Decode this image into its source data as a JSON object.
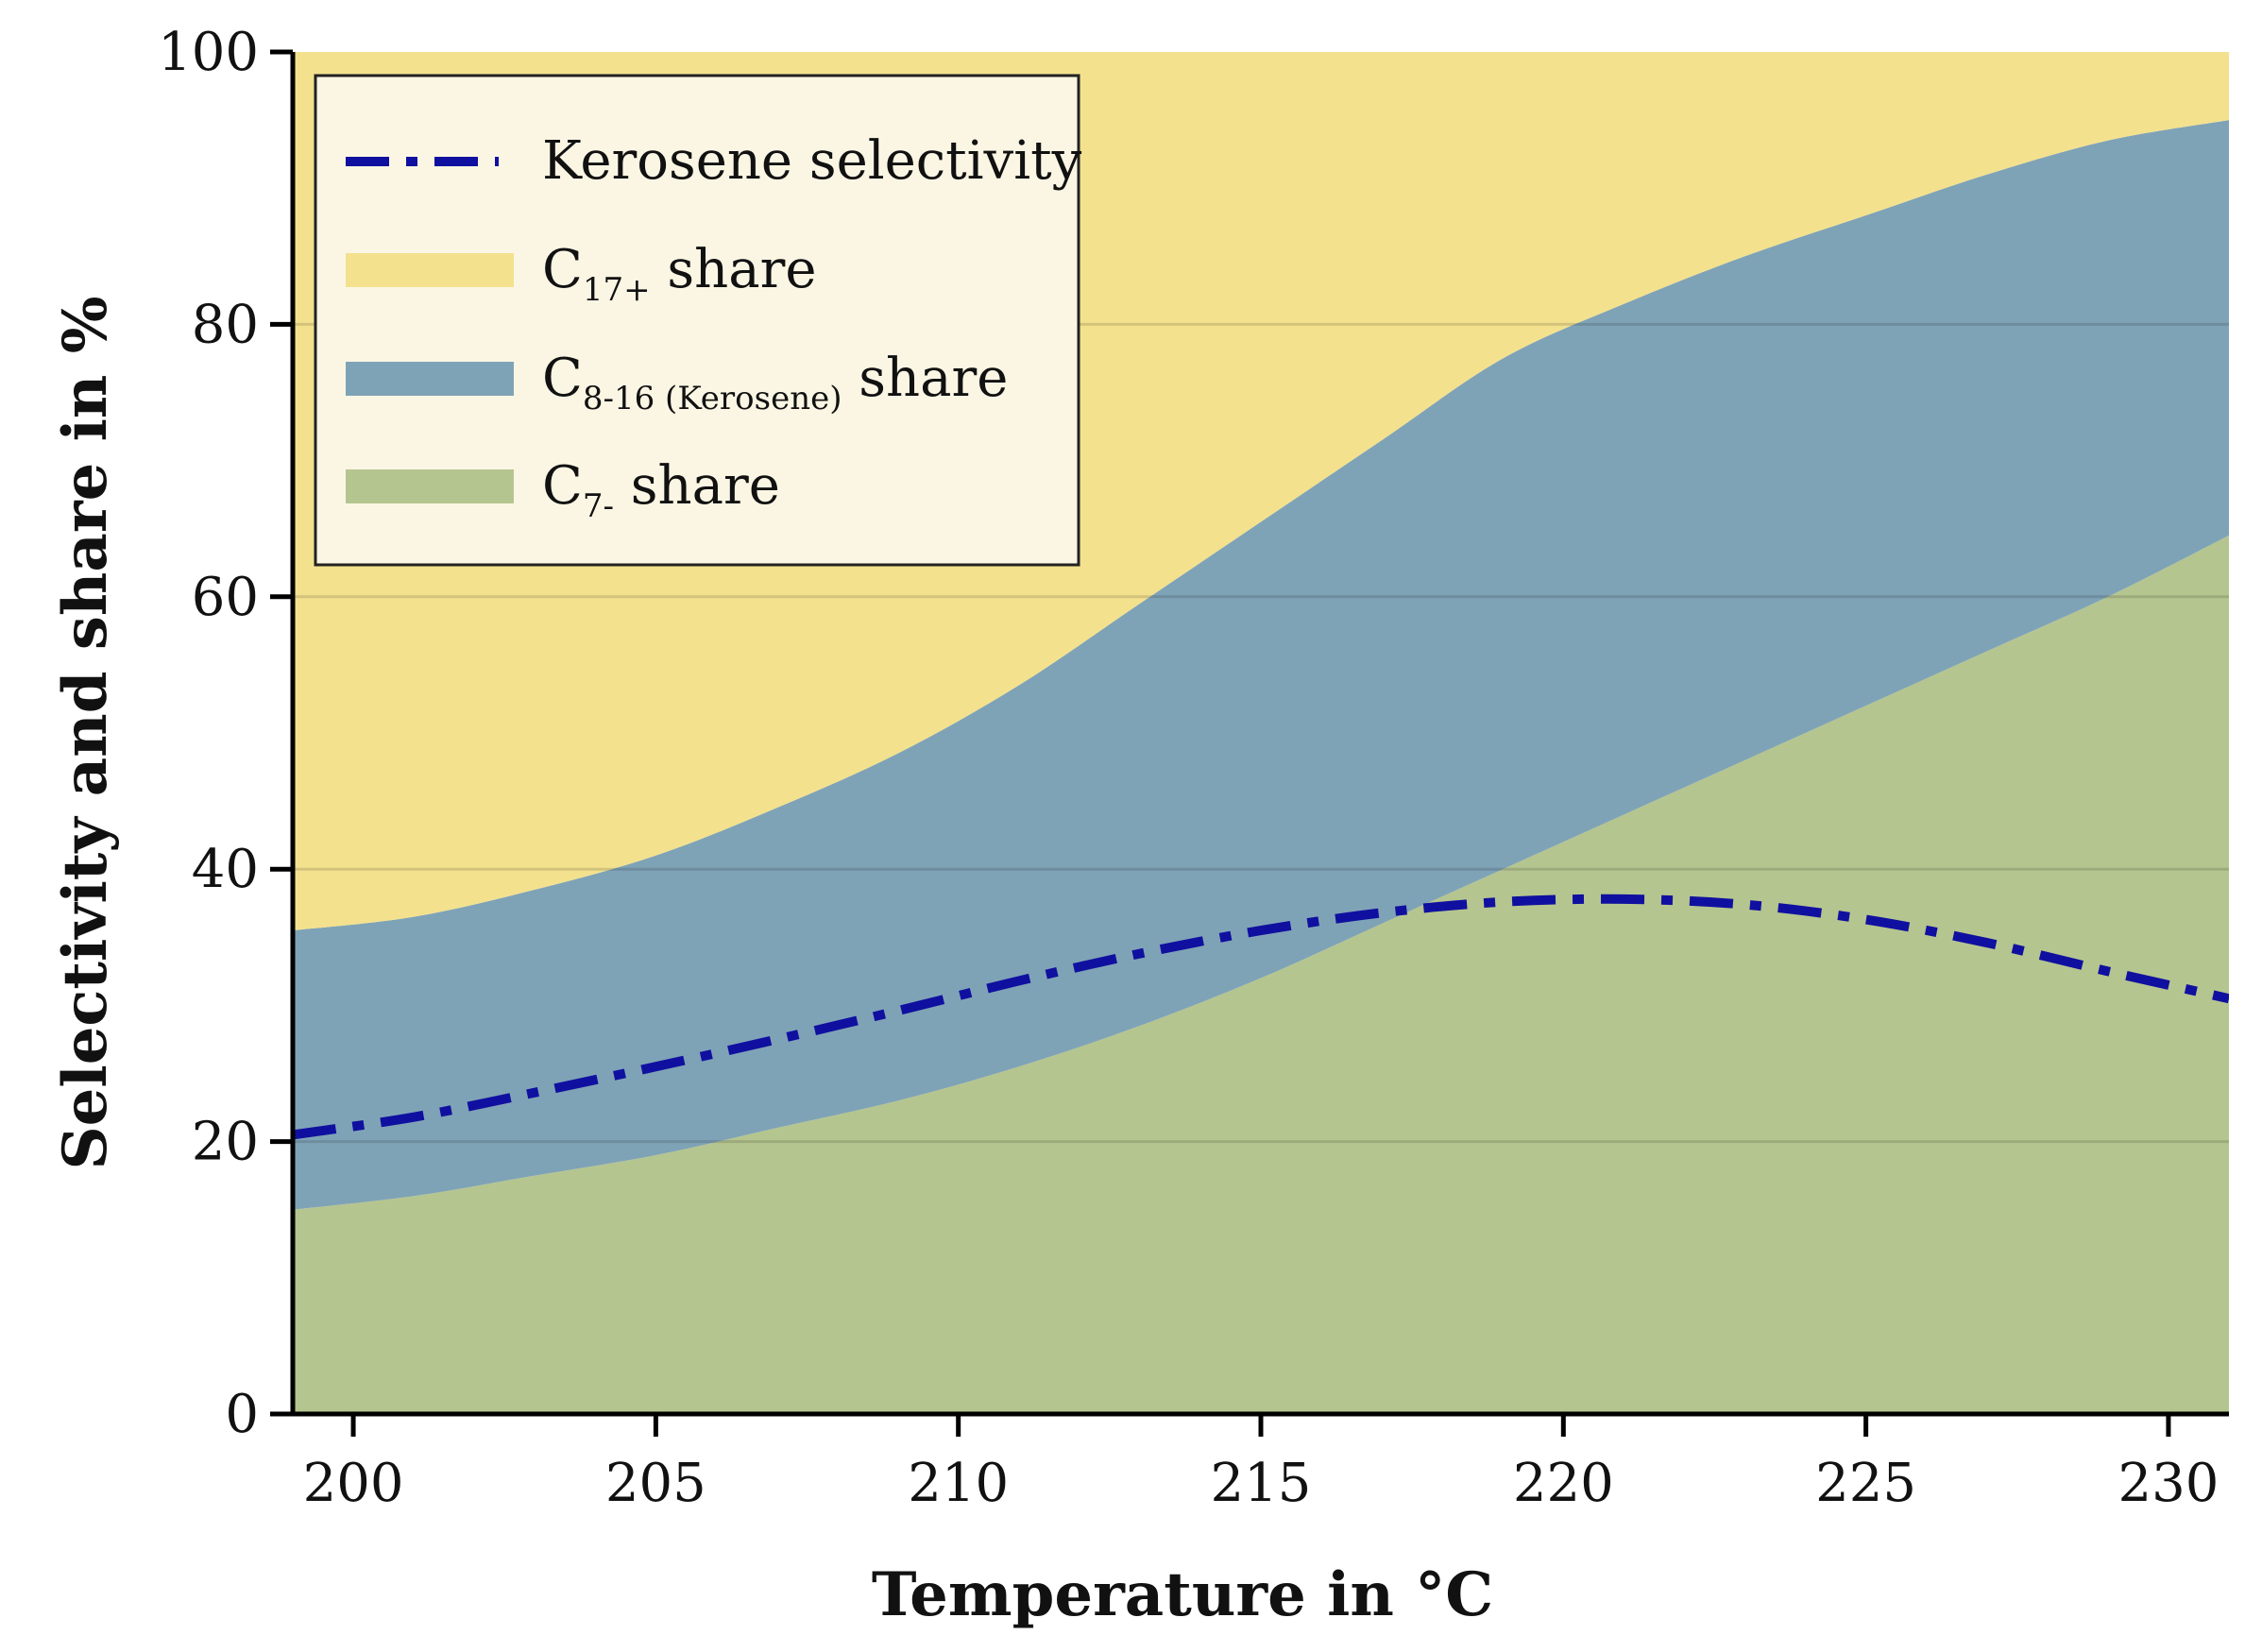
{
  "chart_data": {
    "type": "area",
    "title": "",
    "xlabel": "Temperature in °C",
    "ylabel": "Selectivity and share in %",
    "xlim": [
      199,
      231
    ],
    "ylim": [
      0,
      100
    ],
    "xticks": [
      200,
      205,
      210,
      215,
      220,
      225,
      230
    ],
    "yticks": [
      0,
      20,
      40,
      60,
      80,
      100
    ],
    "grid": "horizontal",
    "legend_position": "top-left",
    "x": [
      199,
      201,
      203,
      205,
      207,
      209,
      211,
      213,
      215,
      217,
      219,
      221,
      223,
      225,
      227,
      229,
      231
    ],
    "stacked_areas": [
      {
        "name": "C7- share",
        "legend_main": "C",
        "legend_sub": "7-",
        "legend_suffix": " share",
        "color": "#b5c58f",
        "values": [
          15.0,
          16.0,
          17.5,
          19.0,
          21.0,
          23.0,
          25.5,
          28.5,
          32.0,
          36.0,
          40.0,
          44.0,
          48.0,
          52.0,
          56.0,
          60.0,
          64.5
        ]
      },
      {
        "name": "C8-16 (Kerosene) share",
        "legend_main": "C",
        "legend_sub": "8-16 (Kerosene)",
        "legend_suffix": " share",
        "color": "#7fa3b6",
        "values": [
          20.5,
          20.5,
          21.0,
          22.0,
          23.5,
          25.5,
          28.0,
          31.0,
          33.5,
          35.5,
          37.5,
          37.5,
          37.0,
          36.0,
          35.0,
          33.5,
          30.5
        ]
      },
      {
        "name": "C17+ share",
        "legend_main": "C",
        "legend_sub": "17+",
        "legend_suffix": " share",
        "color": "#f3e18e",
        "values": [
          64.5,
          63.5,
          61.5,
          59.0,
          55.5,
          51.5,
          46.5,
          40.5,
          34.5,
          28.5,
          22.5,
          18.5,
          15.0,
          12.0,
          9.0,
          6.5,
          5.0
        ]
      }
    ],
    "series": [
      {
        "name": "Kerosene selectivity",
        "style": "dash-dot",
        "color": "#1010a0",
        "values": [
          20.5,
          21.8,
          23.6,
          25.5,
          27.5,
          29.6,
          31.8,
          33.8,
          35.5,
          36.8,
          37.6,
          37.8,
          37.4,
          36.3,
          34.6,
          32.5,
          30.5
        ]
      }
    ]
  }
}
